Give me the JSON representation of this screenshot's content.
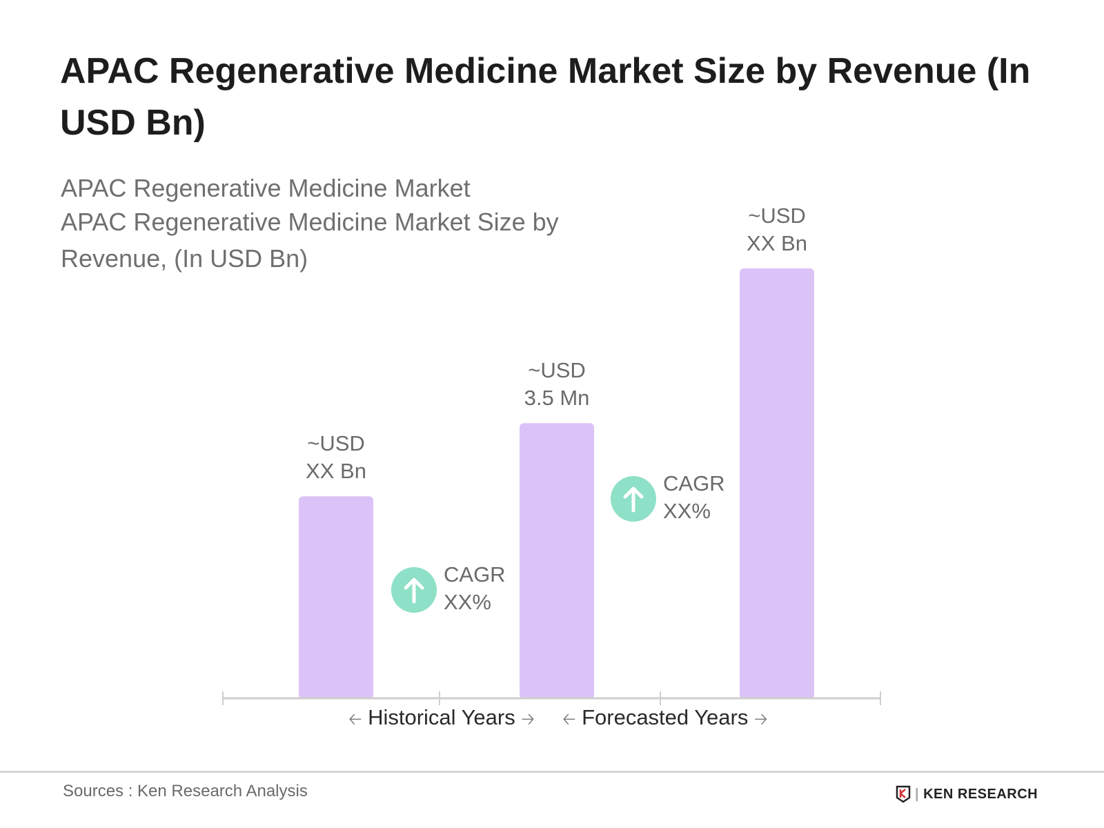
{
  "title": "APAC Regenerative Medicine Market Size by Revenue (In USD Bn)",
  "subtitle_lines": [
    "APAC Regenerative Medicine Market",
    "APAC Regenerative Medicine Market Size by",
    "Revenue, (In USD Bn)"
  ],
  "chart_data": {
    "type": "bar",
    "categories": [
      "",
      "",
      ""
    ],
    "values_relative": [
      0.47,
      0.64,
      1.0
    ],
    "bar_labels": [
      [
        "~USD",
        "XX Bn"
      ],
      [
        "~USD",
        "3.5 Mn"
      ],
      [
        "~USD",
        "XX Bn"
      ]
    ],
    "bar_color": "#dcc3f7",
    "cagr": [
      {
        "label": "CAGR",
        "value": "XX%"
      },
      {
        "label": "CAGR",
        "value": "XX%"
      }
    ],
    "cagr_color": "#8ee0c6",
    "periods": [
      "Historical Years",
      "Forecasted Years"
    ],
    "grid": false
  },
  "footer": {
    "source": "Sources : Ken Research Analysis",
    "logo": "KEN RESEARCH"
  }
}
